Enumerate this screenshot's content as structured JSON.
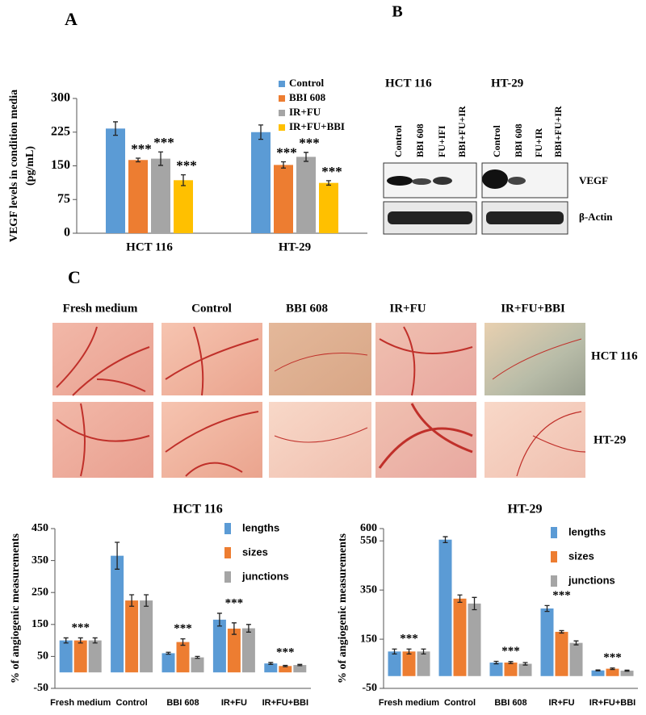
{
  "chart_data": [
    {
      "type": "bar",
      "panel": "A",
      "ylabel": [
        "VEGF levels in condition media",
        "(pg/mL)"
      ],
      "categories": [
        "HCT 116",
        "HT-29"
      ],
      "series": [
        {
          "name": "Control",
          "color": "#5b9bd5",
          "values": [
            233,
            225
          ],
          "errors": [
            15,
            16
          ]
        },
        {
          "name": "BBI 608",
          "color": "#ed7d31",
          "values": [
            163,
            152
          ],
          "errors": [
            4,
            7
          ],
          "annotations": [
            "***",
            "***"
          ]
        },
        {
          "name": "IR+FU",
          "color": "#a5a5a5",
          "values": [
            166,
            170
          ],
          "errors": [
            15,
            10
          ],
          "annotations": [
            "***",
            "***"
          ]
        },
        {
          "name": "IR+FU+BBI",
          "color": "#ffc000",
          "values": [
            118,
            112
          ],
          "errors": [
            12,
            5
          ],
          "annotations": [
            "***",
            "***"
          ]
        }
      ],
      "ylim": [
        0,
        300
      ],
      "yticks": [
        0,
        75,
        150,
        225,
        300
      ]
    },
    {
      "type": "bar",
      "title": "HCT 116",
      "ylabel": [
        "% of angiogenic measurements"
      ],
      "categories": [
        "Fresh medium",
        "Control",
        "BBI 608",
        "IR+FU",
        "IR+FU+BBI"
      ],
      "series": [
        {
          "name": "lengths",
          "color": "#5b9bd5",
          "values": [
            100,
            365,
            60,
            165,
            28
          ],
          "errors": [
            8,
            42,
            3,
            20,
            3
          ]
        },
        {
          "name": "sizes",
          "color": "#ed7d31",
          "values": [
            100,
            225,
            95,
            137,
            20
          ],
          "errors": [
            8,
            18,
            10,
            18,
            2
          ]
        },
        {
          "name": "junctions",
          "color": "#a5a5a5",
          "values": [
            100,
            225,
            47,
            138,
            23
          ],
          "errors": [
            8,
            18,
            3,
            12,
            2
          ]
        }
      ],
      "annotations": [
        "***",
        null,
        "***",
        "***",
        "***"
      ],
      "ylim": [
        -50,
        450
      ],
      "yticks": [
        -50,
        50,
        150,
        250,
        350,
        450
      ]
    },
    {
      "type": "bar",
      "title": "HT-29",
      "ylabel": [
        "% of angiogenic measurements"
      ],
      "categories": [
        "Fresh medium",
        "Control",
        "BBI 608",
        "IR+FU",
        "IR+FU+BBI"
      ],
      "series": [
        {
          "name": "lengths",
          "color": "#5b9bd5",
          "values": [
            100,
            555,
            55,
            275,
            23
          ],
          "errors": [
            10,
            12,
            5,
            12,
            2
          ]
        },
        {
          "name": "sizes",
          "color": "#ed7d31",
          "values": [
            100,
            315,
            55,
            180,
            30
          ],
          "errors": [
            10,
            15,
            4,
            5,
            3
          ]
        },
        {
          "name": "junctions",
          "color": "#a5a5a5",
          "values": [
            100,
            295,
            50,
            135,
            22
          ],
          "errors": [
            10,
            25,
            5,
            8,
            2
          ]
        }
      ],
      "annotations": [
        "***",
        null,
        "***",
        "***",
        "***"
      ],
      "ylim": [
        -50,
        600
      ],
      "yticks": [
        -50,
        150,
        350,
        550,
        600
      ]
    }
  ],
  "western_blot": {
    "panel": "B",
    "groups": [
      {
        "name": "HCT 116",
        "lanes": [
          "Control",
          "BBI 608",
          "FU+IFI",
          "BBI+FU+IR"
        ]
      },
      {
        "name": "HT-29",
        "lanes": [
          "Control",
          "BBI 608",
          "FU+IR",
          "BBI+FU+IR"
        ]
      }
    ],
    "bands": [
      "VEGF",
      "β-Actin"
    ]
  },
  "cam_assay": {
    "panel": "C",
    "columns": [
      "Fresh medium",
      "Control",
      "BBI 608",
      "IR+FU",
      "IR+FU+BBI"
    ],
    "rows": [
      "HCT 116",
      "HT-29"
    ]
  }
}
